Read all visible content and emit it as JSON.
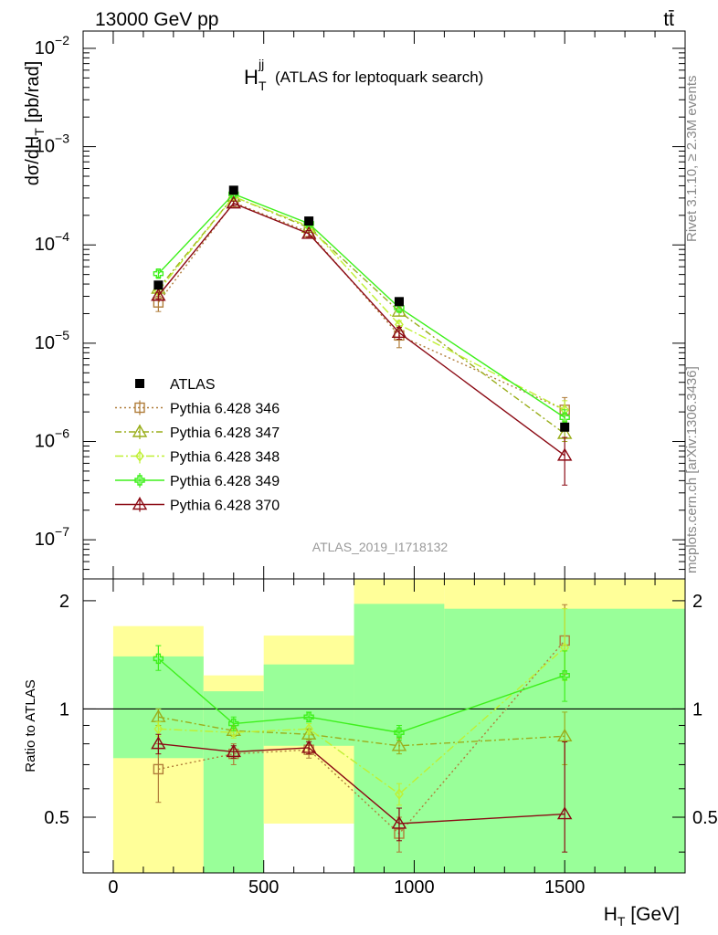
{
  "header": {
    "left": "13000 GeV pp",
    "right": "tt̄"
  },
  "plot_title": {
    "symbol": "H",
    "superscript": "jj",
    "subscript": "T",
    "description": "(ATLAS for leptoquark search)"
  },
  "analysis_label": "ATLAS_2019_I1718132",
  "side_labels": {
    "rivet": "Rivet 3.1.10, ≥ 2.3M events",
    "mcplots": "mcplots.cern.ch [arXiv:1306.3436]"
  },
  "colors": {
    "data": "#000000",
    "py346": "#b07d3a",
    "py347": "#9aae1c",
    "py348": "#bff033",
    "py349": "#3ef01c",
    "py370": "#8b0a14",
    "band_inner": "#99ff99",
    "band_outer": "#ffff99"
  },
  "chart_data": [
    {
      "type": "scatter",
      "panel": "main",
      "ylabel_main": "dσ/dH",
      "ylabel_sub": "T",
      "ylabel_unit": " [pb/rad]",
      "yscale": "log",
      "ylim": [
        4e-08,
        0.015
      ],
      "xlim": [
        -100,
        1900
      ],
      "y_ticks": [
        {
          "v": 0.01,
          "exp": "−2"
        },
        {
          "v": 0.001,
          "exp": "−3"
        },
        {
          "v": 0.0001,
          "exp": "−4"
        },
        {
          "v": 1e-05,
          "exp": "−5"
        },
        {
          "v": 1e-06,
          "exp": "−6"
        },
        {
          "v": 1e-07,
          "exp": "−7"
        }
      ],
      "tick_base": "10",
      "legend_position": "lower-left",
      "data": {
        "name": "ATLAS",
        "x": [
          150,
          400,
          650,
          950,
          1500
        ],
        "y": [
          3.9e-05,
          0.00036,
          0.000175,
          2.65e-05,
          1.4e-06
        ]
      },
      "series": [
        {
          "key": "py346",
          "name": "Pythia 6.428 346",
          "marker": "square",
          "dash": "2,3",
          "x": [
            150,
            400,
            650,
            950,
            1500
          ],
          "y": [
            2.6e-05,
            0.00027,
            0.000135,
            1.2e-05,
            2.1e-06
          ],
          "err_lo": [
            2.1e-05,
            0.00024,
            0.00012,
            9e-06,
            1.5e-06
          ],
          "err_hi": [
            3e-05,
            0.0003,
            0.00015,
            1.5e-05,
            2.8e-06
          ]
        },
        {
          "key": "py347",
          "name": "Pythia 6.428 347",
          "marker": "triangle",
          "dash": "7,3,2,3",
          "x": [
            150,
            400,
            650,
            950,
            1500
          ],
          "y": [
            3.6e-05,
            0.00031,
            0.00015,
            2.1e-05,
            1.2e-06
          ],
          "err_lo": [
            3.2e-05,
            0.00029,
            0.00014,
            1.9e-05,
            1e-06
          ],
          "err_hi": [
            4e-05,
            0.00033,
            0.00016,
            2.3e-05,
            1.4e-06
          ]
        },
        {
          "key": "py348",
          "name": "Pythia 6.428 348",
          "marker": "diamond",
          "dash": "9,3,2,3",
          "x": [
            150,
            400,
            650,
            950,
            1500
          ],
          "y": [
            3.4e-05,
            0.00031,
            0.000155,
            1.55e-05,
            2.1e-06
          ],
          "err_lo": [
            3.1e-05,
            0.00029,
            0.000145,
            1.4e-05,
            1.6e-06
          ],
          "err_hi": [
            3.7e-05,
            0.00033,
            0.000165,
            1.7e-05,
            2.6e-06
          ]
        },
        {
          "key": "py349",
          "name": "Pythia 6.428 349",
          "marker": "cross",
          "dash": "",
          "x": [
            150,
            400,
            650,
            950,
            1500
          ],
          "y": [
            5.1e-05,
            0.00033,
            0.000165,
            2.3e-05,
            1.75e-06
          ],
          "err_lo": [
            4.7e-05,
            0.00031,
            0.000155,
            2.1e-05,
            1.4e-06
          ],
          "err_hi": [
            5.5e-05,
            0.00035,
            0.000175,
            2.5e-05,
            2.1e-06
          ]
        },
        {
          "key": "py370",
          "name": "Pythia 6.428 370",
          "marker": "triangle",
          "dash": "",
          "x": [
            150,
            400,
            650,
            950,
            1500
          ],
          "y": [
            3.05e-05,
            0.000265,
            0.00013,
            1.28e-05,
            7.2e-07
          ],
          "err_lo": [
            2.8e-05,
            0.00025,
            0.00012,
            1.1e-05,
            3.6e-07
          ],
          "err_hi": [
            3.3e-05,
            0.00028,
            0.00014,
            1.45e-05,
            1.1e-06
          ]
        }
      ]
    },
    {
      "type": "scatter",
      "panel": "ratio",
      "ylabel": "Ratio to ATLAS",
      "xlabel_main": "H",
      "xlabel_sub": "T",
      "xlabel_unit": " [GeV]",
      "xlim": [
        -100,
        1900
      ],
      "ylim": [
        0.35,
        2.3
      ],
      "x_tick_labels": [
        0,
        500,
        1000,
        1500
      ],
      "y_tick_labels": [
        0.5,
        1,
        2
      ],
      "reference_line": 1,
      "bands": [
        {
          "xlo": 0,
          "xhi": 300,
          "outer_lo": 0.35,
          "outer_hi": 1.7,
          "inner_lo": 0.73,
          "inner_hi": 1.4
        },
        {
          "xlo": 300,
          "xhi": 500,
          "outer_lo": 0.35,
          "outer_hi": 1.24,
          "inner_lo": 0.35,
          "inner_hi": 1.12
        },
        {
          "xlo": 500,
          "xhi": 800,
          "outer_lo": 0.48,
          "outer_hi": 1.6,
          "inner_lo": 0.79,
          "inner_hi": 1.33
        },
        {
          "xlo": 800,
          "xhi": 1100,
          "outer_lo": 0.35,
          "outer_hi": 2.3,
          "inner_lo": 0.35,
          "inner_hi": 1.96
        },
        {
          "xlo": 1100,
          "xhi": 1900,
          "outer_lo": 0.35,
          "outer_hi": 2.3,
          "inner_lo": 0.35,
          "inner_hi": 1.9
        }
      ],
      "series": [
        {
          "key": "py346",
          "x": [
            150,
            400,
            650,
            950,
            1500
          ],
          "y": [
            0.68,
            0.75,
            0.77,
            0.45,
            1.55
          ],
          "err_lo": [
            0.55,
            0.7,
            0.73,
            0.4,
            1.25
          ],
          "err_hi": [
            0.8,
            0.8,
            0.81,
            0.5,
            1.95
          ]
        },
        {
          "key": "py347",
          "x": [
            150,
            400,
            650,
            950,
            1500
          ],
          "y": [
            0.95,
            0.87,
            0.85,
            0.79,
            0.84
          ],
          "err_lo": [
            0.9,
            0.84,
            0.82,
            0.75,
            0.7
          ],
          "err_hi": [
            1.0,
            0.9,
            0.88,
            0.83,
            0.98
          ]
        },
        {
          "key": "py348",
          "x": [
            150,
            400,
            650,
            950,
            1500
          ],
          "y": [
            0.88,
            0.86,
            0.88,
            0.58,
            1.48
          ],
          "err_lo": [
            0.84,
            0.83,
            0.85,
            0.54,
            1.2
          ],
          "err_hi": [
            0.92,
            0.89,
            0.91,
            0.62,
            1.9
          ]
        },
        {
          "key": "py349",
          "x": [
            150,
            400,
            650,
            950,
            1500
          ],
          "y": [
            1.38,
            0.91,
            0.95,
            0.86,
            1.24
          ],
          "err_lo": [
            1.28,
            0.87,
            0.92,
            0.82,
            1.05
          ],
          "err_hi": [
            1.5,
            0.95,
            0.98,
            0.9,
            1.45
          ]
        },
        {
          "key": "py370",
          "x": [
            150,
            400,
            650,
            950,
            1500
          ],
          "y": [
            0.8,
            0.76,
            0.78,
            0.48,
            0.51
          ],
          "err_lo": [
            0.75,
            0.73,
            0.75,
            0.43,
            0.4
          ],
          "err_hi": [
            0.85,
            0.79,
            0.81,
            0.53,
            0.81
          ]
        }
      ]
    }
  ]
}
